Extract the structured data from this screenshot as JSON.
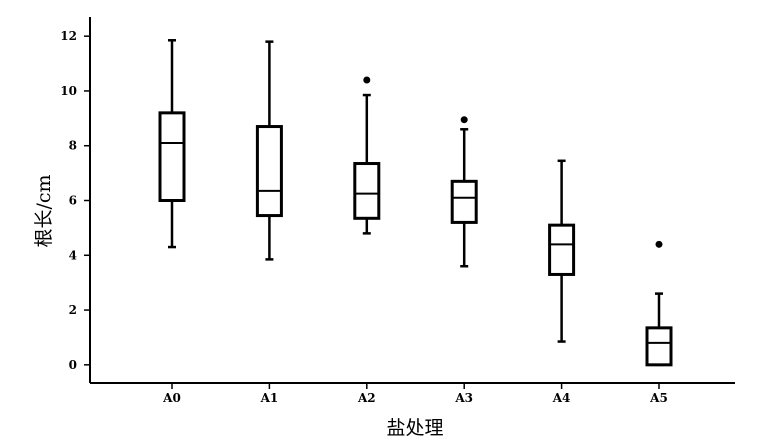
{
  "chart_data": {
    "type": "boxplot",
    "title": "",
    "xlabel": "盐处理",
    "ylabel": "根长/cm",
    "ylim": [
      -0.7,
      12.7
    ],
    "yticks": [
      0,
      2,
      4,
      6,
      8,
      10,
      12
    ],
    "categories": [
      "A0",
      "A1",
      "A2",
      "A3",
      "A4",
      "A5"
    ],
    "grid": false,
    "boxes": [
      {
        "category": "A0",
        "min": 4.3,
        "q1": 6.0,
        "median": 8.1,
        "q3": 9.2,
        "max": 11.85,
        "outliers": []
      },
      {
        "category": "A1",
        "min": 3.85,
        "q1": 5.45,
        "median": 6.35,
        "q3": 8.7,
        "max": 11.8,
        "outliers": []
      },
      {
        "category": "A2",
        "min": 4.8,
        "q1": 5.35,
        "median": 6.25,
        "q3": 7.35,
        "max": 9.85,
        "outliers": [
          10.4
        ]
      },
      {
        "category": "A3",
        "min": 3.6,
        "q1": 5.2,
        "median": 6.1,
        "q3": 6.7,
        "max": 8.6,
        "outliers": [
          8.95
        ]
      },
      {
        "category": "A4",
        "min": 0.85,
        "q1": 3.3,
        "median": 4.4,
        "q3": 5.1,
        "max": 7.45,
        "outliers": []
      },
      {
        "category": "A5",
        "min": 0.0,
        "q1": 0.0,
        "median": 0.8,
        "q3": 1.35,
        "max": 2.6,
        "outliers": [
          4.4
        ]
      }
    ]
  }
}
